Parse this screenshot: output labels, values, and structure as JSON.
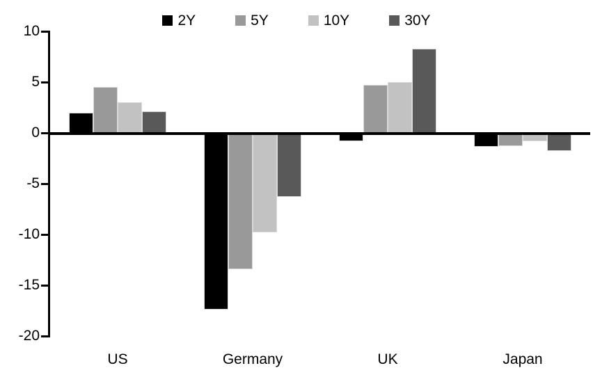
{
  "chart_data": {
    "type": "bar",
    "title": "",
    "xlabel": "",
    "ylabel": "",
    "categories": [
      "US",
      "Germany",
      "UK",
      "Japan"
    ],
    "series": [
      {
        "name": "2Y",
        "color": "#000000",
        "values": [
          2.0,
          -17.4,
          -0.8,
          -1.4
        ]
      },
      {
        "name": "5Y",
        "color": "#999999",
        "values": [
          4.5,
          -13.4,
          4.7,
          -1.3
        ]
      },
      {
        "name": "10Y",
        "color": "#c2c2c2",
        "values": [
          3.0,
          -9.8,
          5.0,
          -0.8
        ]
      },
      {
        "name": "30Y",
        "color": "#595959",
        "values": [
          2.1,
          -6.3,
          8.3,
          -1.8
        ]
      }
    ],
    "ylim": [
      -20,
      10
    ],
    "yticks": [
      10,
      5,
      0,
      -5,
      -10,
      -15,
      -20
    ],
    "grid": false,
    "legend_position": "top",
    "axis_color": "#000000",
    "bar_outline_color": "#d9d9d9"
  }
}
